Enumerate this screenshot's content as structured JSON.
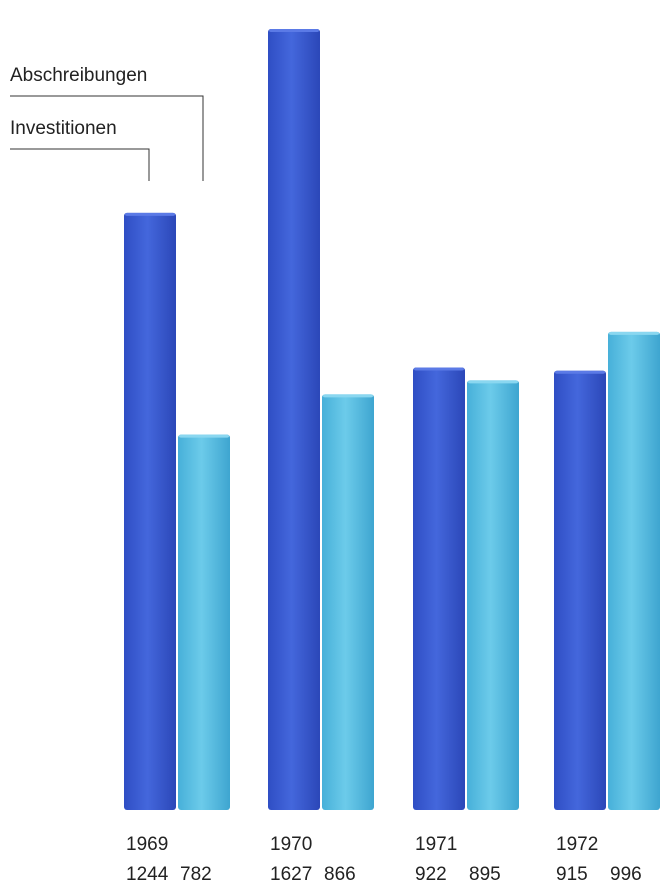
{
  "chart_data": {
    "type": "bar",
    "categories": [
      "1969",
      "1970",
      "1971",
      "1972"
    ],
    "series": [
      {
        "name": "Investitionen",
        "values": [
          1244,
          1627,
          922,
          915
        ]
      },
      {
        "name": "Abschreibungen",
        "values": [
          782,
          866,
          895,
          996
        ]
      }
    ],
    "value_labels": [
      [
        "1244",
        "782"
      ],
      [
        "1627",
        "866"
      ],
      [
        "922",
        "895"
      ],
      [
        "915",
        "996"
      ]
    ],
    "legend": {
      "investitionen": "Investitionen",
      "abschreibungen": "Abschreibungen",
      "placement": "top-left"
    },
    "ylim": [
      0,
      1650
    ],
    "grid": false,
    "colors": {
      "investitionen": "#3d5fd6",
      "abschreibungen": "#58bde0"
    }
  }
}
